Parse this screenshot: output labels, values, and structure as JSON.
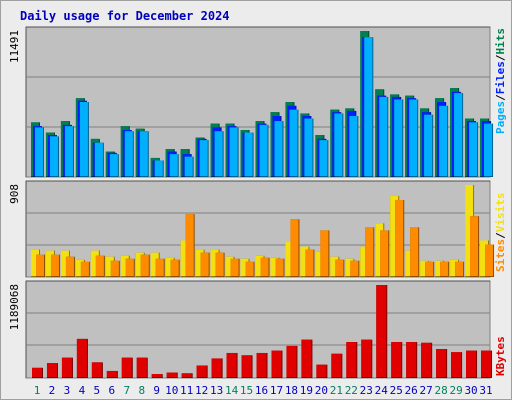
{
  "title": "Daily usage for December 2024",
  "colors": {
    "visits": "#f4e010",
    "sites": "#ff8c00",
    "pages": "#00b0ff",
    "files": "#0020ff",
    "hits": "#008050",
    "kbytes": "#e00000",
    "weekend_day": "#008060",
    "weekday": "#0000c0"
  },
  "chart_data": [
    {
      "type": "bar",
      "panel": "hits-files-pages",
      "categories": [
        "1",
        "2",
        "3",
        "4",
        "5",
        "6",
        "7",
        "8",
        "9",
        "10",
        "11",
        "12",
        "13",
        "14",
        "15",
        "16",
        "17",
        "18",
        "19",
        "20",
        "21",
        "22",
        "23",
        "24",
        "25",
        "26",
        "27",
        "28",
        "29",
        "30",
        "31"
      ],
      "y_max_label": "11491",
      "ylim": [
        0,
        11491
      ],
      "series": [
        {
          "name": "Hits",
          "values": [
            4300,
            3500,
            4400,
            6200,
            3000,
            2000,
            4000,
            3800,
            1500,
            2200,
            2200,
            3100,
            4200,
            4200,
            3700,
            4400,
            5100,
            5900,
            5000,
            3300,
            5300,
            5400,
            11491,
            6900,
            6500,
            6400,
            5400,
            6200,
            7000,
            4600,
            4600
          ]
        },
        {
          "name": "Files",
          "values": [
            4000,
            3300,
            4100,
            6000,
            2700,
            1900,
            3700,
            3600,
            1300,
            2000,
            1800,
            3000,
            3900,
            4000,
            3500,
            4200,
            4800,
            5600,
            4800,
            3000,
            5100,
            5200,
            11000,
            6400,
            6300,
            6200,
            5100,
            5900,
            6700,
            4400,
            4400
          ]
        },
        {
          "name": "Pages",
          "values": [
            3900,
            3200,
            4000,
            5900,
            2700,
            1800,
            3600,
            3600,
            1300,
            1800,
            1600,
            2900,
            3600,
            3900,
            3500,
            4100,
            4400,
            5300,
            4600,
            2900,
            5000,
            4800,
            11000,
            6300,
            6100,
            6100,
            4900,
            5600,
            6600,
            4300,
            4200
          ]
        }
      ],
      "legend": [
        "Pages",
        "Files",
        "Hits"
      ]
    },
    {
      "type": "bar",
      "panel": "visits-sites",
      "categories": [
        "1",
        "2",
        "3",
        "4",
        "5",
        "6",
        "7",
        "8",
        "9",
        "10",
        "11",
        "12",
        "13",
        "14",
        "15",
        "16",
        "17",
        "18",
        "19",
        "20",
        "21",
        "22",
        "23",
        "24",
        "25",
        "26",
        "27",
        "28",
        "29",
        "30",
        "31"
      ],
      "y_max_label": "908",
      "ylim": [
        0,
        908
      ],
      "series": [
        {
          "name": "Visits",
          "values": [
            270,
            260,
            260,
            170,
            260,
            200,
            210,
            240,
            240,
            190,
            360,
            270,
            270,
            200,
            180,
            210,
            190,
            350,
            300,
            250,
            200,
            180,
            300,
            530,
            800,
            260,
            160,
            160,
            170,
            908,
            360
          ]
        },
        {
          "name": "Sites",
          "values": [
            220,
            220,
            200,
            150,
            210,
            160,
            180,
            220,
            180,
            170,
            620,
            240,
            240,
            180,
            150,
            190,
            180,
            570,
            270,
            460,
            170,
            160,
            490,
            460,
            760,
            490,
            150,
            150,
            150,
            600,
            320
          ]
        }
      ],
      "legend": [
        "Sites",
        "Visits"
      ]
    },
    {
      "type": "bar",
      "panel": "kbytes",
      "categories": [
        "1",
        "2",
        "3",
        "4",
        "5",
        "6",
        "7",
        "8",
        "9",
        "10",
        "11",
        "12",
        "13",
        "14",
        "15",
        "16",
        "17",
        "18",
        "19",
        "20",
        "21",
        "22",
        "23",
        "24",
        "25",
        "26",
        "27",
        "28",
        "29",
        "30",
        "31"
      ],
      "y_max_label": "1189068",
      "ylim": [
        0,
        1189068
      ],
      "series": [
        {
          "name": "KBytes",
          "values": [
            130000,
            190000,
            260000,
            500000,
            200000,
            90000,
            260000,
            260000,
            50000,
            70000,
            60000,
            160000,
            250000,
            320000,
            290000,
            320000,
            350000,
            410000,
            490000,
            170000,
            310000,
            460000,
            490000,
            1189068,
            460000,
            460000,
            450000,
            370000,
            330000,
            350000,
            350000
          ]
        }
      ],
      "legend": [
        "KBytes"
      ]
    }
  ]
}
